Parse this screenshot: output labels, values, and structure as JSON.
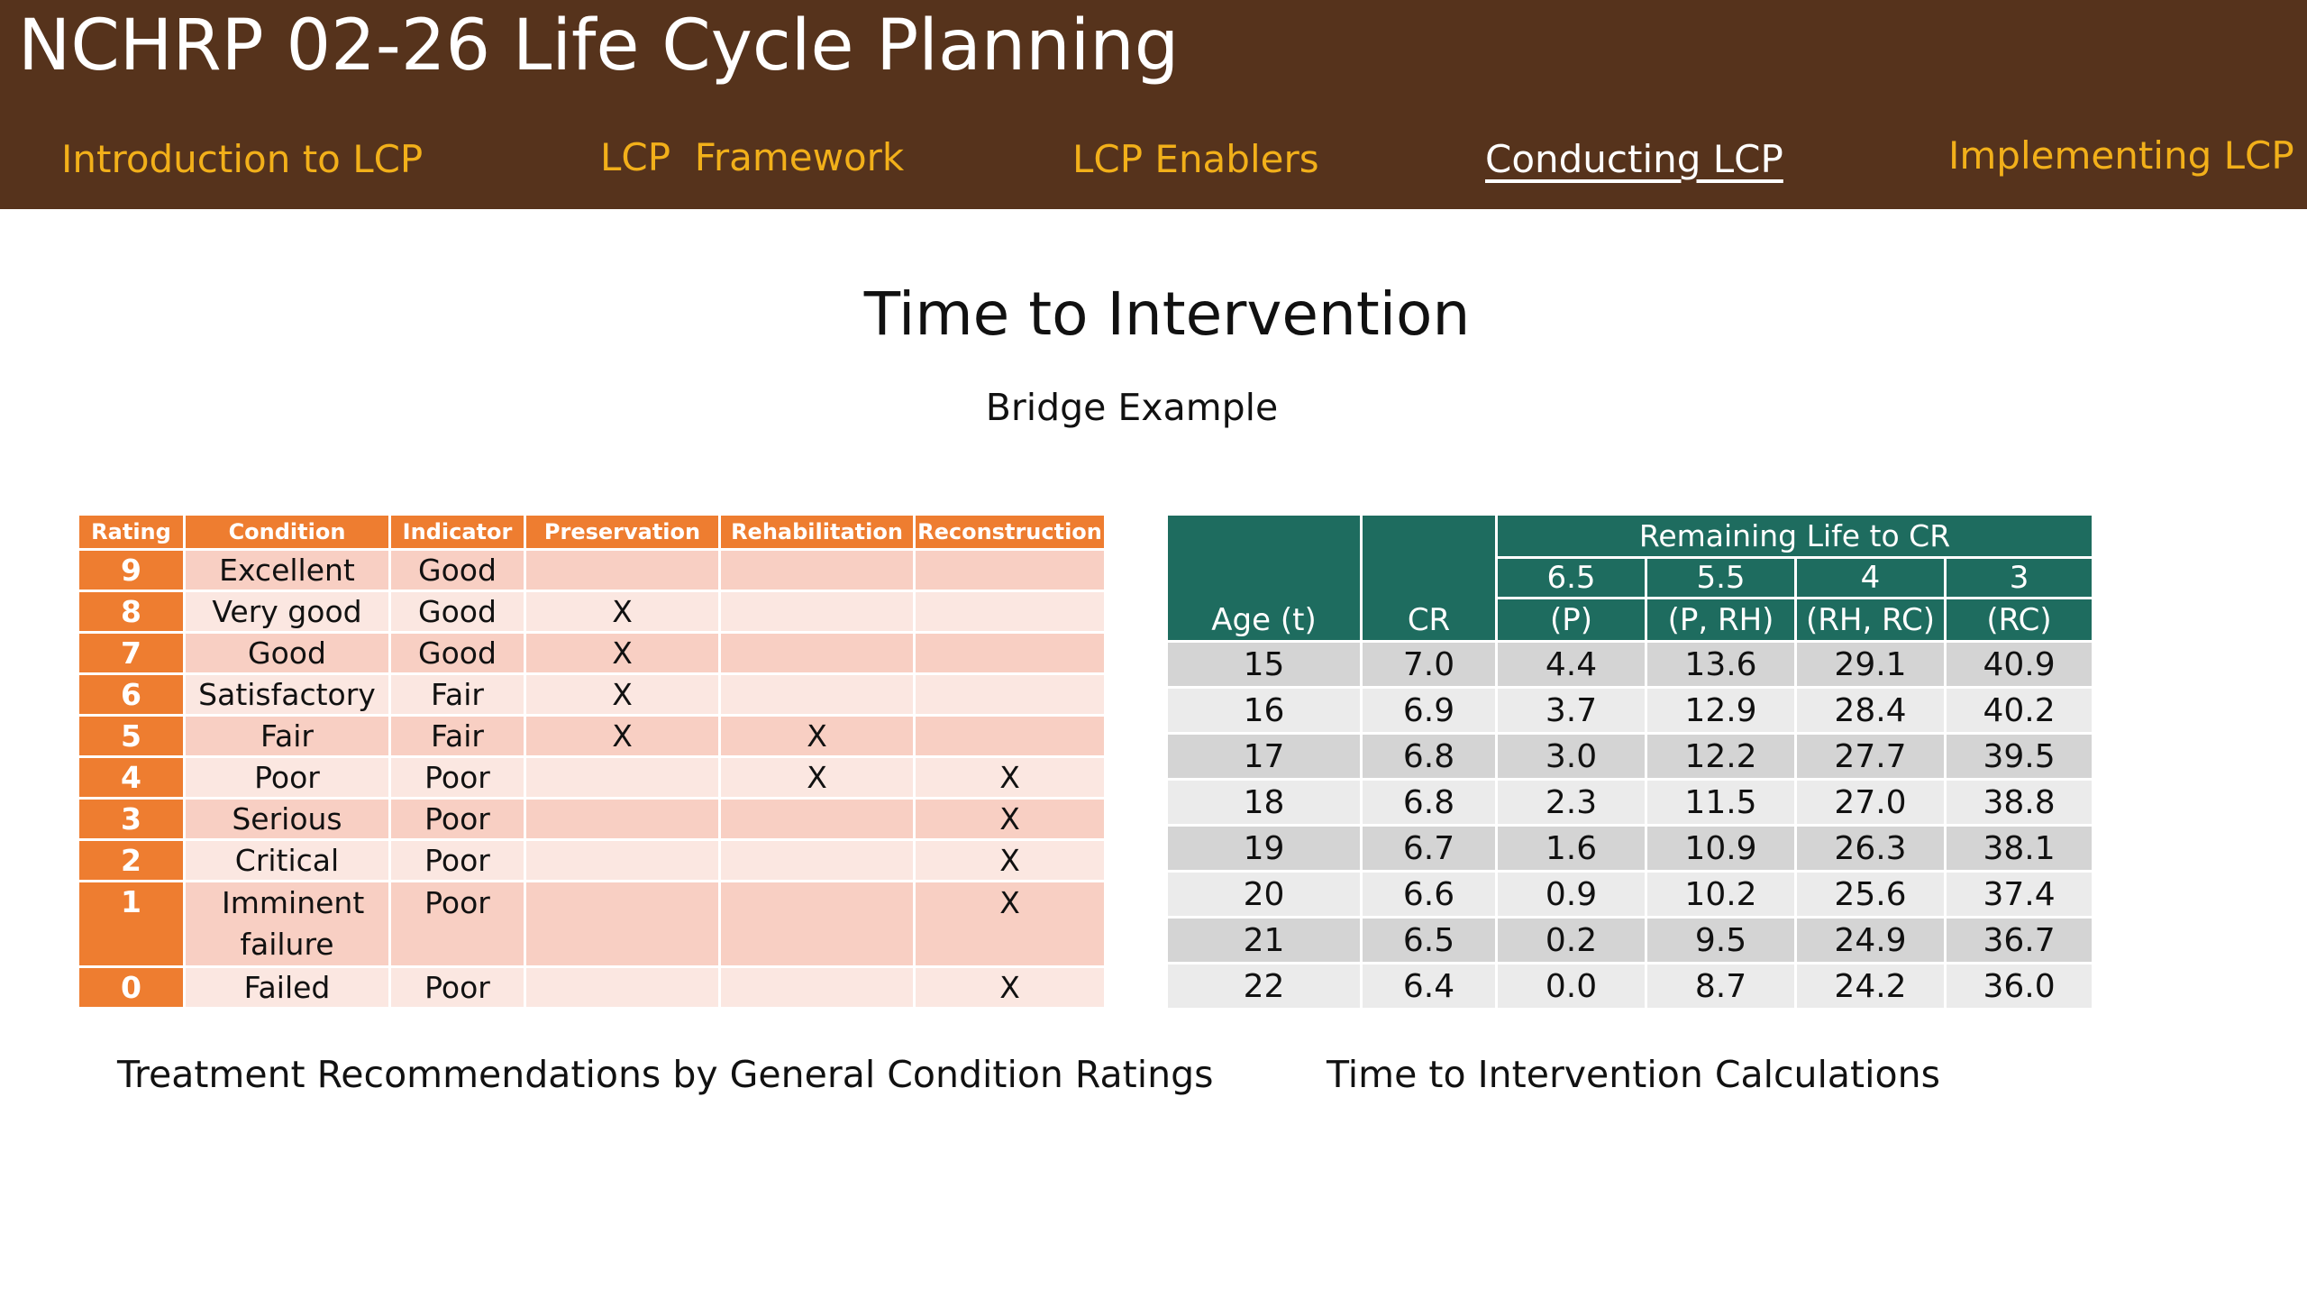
{
  "header": {
    "title": "NCHRP 02-26 Life Cycle Planning",
    "nav": [
      {
        "label": "Introduction to LCP"
      },
      {
        "label": "LCP  Framework"
      },
      {
        "label": "LCP Enablers"
      },
      {
        "label": "Conducting LCP"
      },
      {
        "label": "Implementing LCP"
      }
    ],
    "active_nav": "Conducting LCP"
  },
  "main": {
    "title": "Time to Intervention",
    "subtitle": "Bridge Example"
  },
  "rating_table": {
    "headers": [
      "Rating",
      "Condition",
      "Indicator",
      "Preservation",
      "Rehabilitation",
      "Reconstruction"
    ],
    "rows": [
      {
        "rating": "9",
        "condition": "Excellent",
        "indicator": "Good",
        "preservation": "",
        "rehabilitation": "",
        "reconstruction": ""
      },
      {
        "rating": "8",
        "condition": "Very good",
        "indicator": "Good",
        "preservation": "X",
        "rehabilitation": "",
        "reconstruction": ""
      },
      {
        "rating": "7",
        "condition": "Good",
        "indicator": "Good",
        "preservation": "X",
        "rehabilitation": "",
        "reconstruction": ""
      },
      {
        "rating": "6",
        "condition": "Satisfactory",
        "indicator": "Fair",
        "preservation": "X",
        "rehabilitation": "",
        "reconstruction": ""
      },
      {
        "rating": "5",
        "condition": "Fair",
        "indicator": "Fair",
        "preservation": "X",
        "rehabilitation": "X",
        "reconstruction": ""
      },
      {
        "rating": "4",
        "condition": "Poor",
        "indicator": "Poor",
        "preservation": "",
        "rehabilitation": "X",
        "reconstruction": "X"
      },
      {
        "rating": "3",
        "condition": "Serious",
        "indicator": "Poor",
        "preservation": "",
        "rehabilitation": "",
        "reconstruction": "X"
      },
      {
        "rating": "2",
        "condition": "Critical",
        "indicator": "Poor",
        "preservation": "",
        "rehabilitation": "",
        "reconstruction": "X"
      },
      {
        "rating": "1",
        "condition": "Imminent failure",
        "indicator": "Poor",
        "preservation": "",
        "rehabilitation": "",
        "reconstruction": "X"
      },
      {
        "rating": "0",
        "condition": "Failed",
        "indicator": "Poor",
        "preservation": "",
        "rehabilitation": "",
        "reconstruction": "X"
      }
    ],
    "caption": "Treatment Recommendations by General Condition Ratings"
  },
  "life_table": {
    "group_header": "Remaining Life to CR",
    "age_header": "Age (t)",
    "cr_header": "CR",
    "sub_headers": [
      {
        "value": "6.5",
        "code": "(P)"
      },
      {
        "value": "5.5",
        "code": "(P, RH)"
      },
      {
        "value": "4",
        "code": "(RH, RC)"
      },
      {
        "value": "3",
        "code": "(RC)"
      }
    ],
    "rows": [
      [
        "15",
        "7.0",
        "4.4",
        "13.6",
        "29.1",
        "40.9"
      ],
      [
        "16",
        "6.9",
        "3.7",
        "12.9",
        "28.4",
        "40.2"
      ],
      [
        "17",
        "6.8",
        "3.0",
        "12.2",
        "27.7",
        "39.5"
      ],
      [
        "18",
        "6.8",
        "2.3",
        "11.5",
        "27.0",
        "38.8"
      ],
      [
        "19",
        "6.7",
        "1.6",
        "10.9",
        "26.3",
        "38.1"
      ],
      [
        "20",
        "6.6",
        "0.9",
        "10.2",
        "25.6",
        "37.4"
      ],
      [
        "21",
        "6.5",
        "0.2",
        "9.5",
        "24.9",
        "36.7"
      ],
      [
        "22",
        "6.4",
        "0.0",
        "8.7",
        "24.2",
        "36.0"
      ]
    ],
    "caption": "Time to Intervention Calculations"
  },
  "colors": {
    "header_bg": "#56331c",
    "nav_text": "#f2b01a",
    "rating_accent": "#ee7d30",
    "life_header": "#1e6c5f"
  }
}
